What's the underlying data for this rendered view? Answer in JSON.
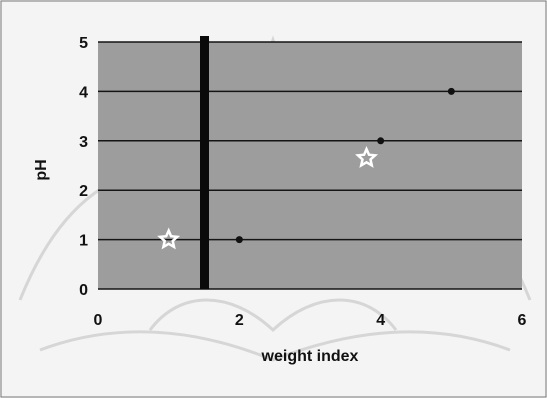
{
  "chart_data": {
    "type": "scatter",
    "title": "",
    "xlabel": "weight index",
    "ylabel": "pH",
    "xlim": [
      0,
      6
    ],
    "ylim": [
      0,
      5
    ],
    "x_ticks": [
      "0",
      "2",
      "4",
      "6"
    ],
    "y_ticks": [
      "0",
      "1",
      "2",
      "3",
      "4",
      "5"
    ],
    "grid": "horizontal",
    "reference_line": {
      "x": 1.5,
      "color": "#0a0a0a"
    },
    "series": [
      {
        "marker": "star-outline",
        "color": "#ffffff",
        "points": [
          {
            "x": 1.0,
            "y": 1.0
          },
          {
            "x": 3.8,
            "y": 2.65
          }
        ]
      },
      {
        "marker": "dot",
        "color": "#111111",
        "points": [
          {
            "x": 2.0,
            "y": 1.0
          },
          {
            "x": 4.0,
            "y": 3.0
          },
          {
            "x": 5.0,
            "y": 4.0
          }
        ]
      }
    ]
  }
}
